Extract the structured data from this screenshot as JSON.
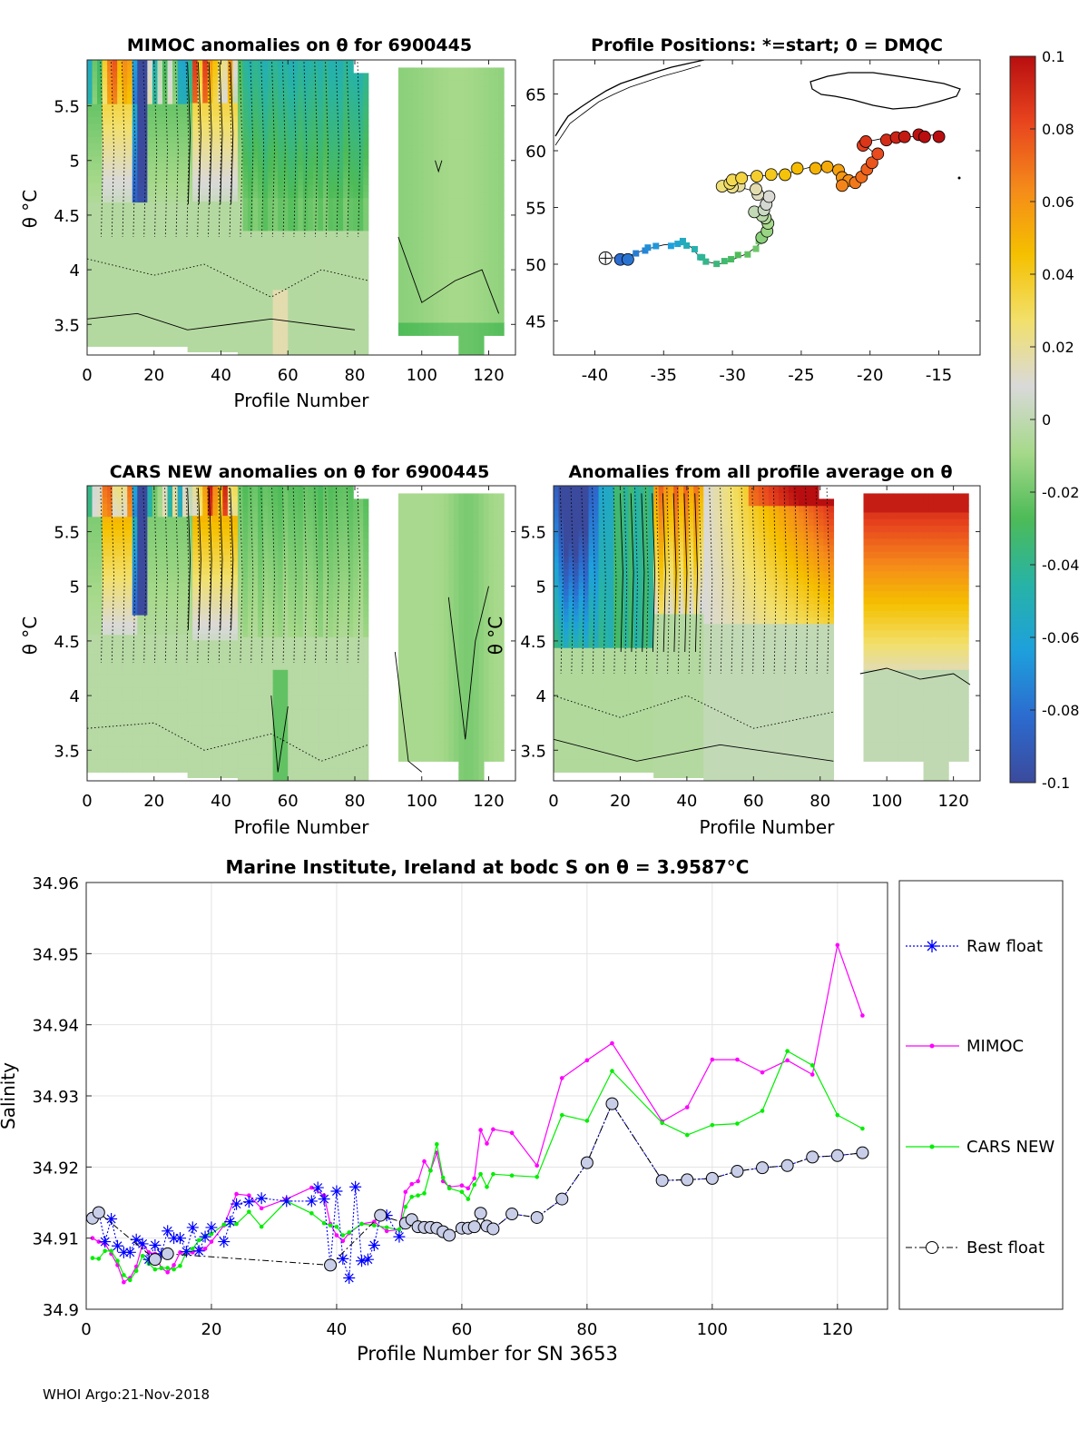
{
  "footer": "WHOI Argo:21-Nov-2018",
  "colorbar": {
    "ticks": [
      "0.1",
      "0.08",
      "0.06",
      "0.04",
      "0.02",
      "0",
      "-0.02",
      "-0.04",
      "-0.06",
      "-0.08",
      "-0.1"
    ],
    "range": [
      -0.1,
      0.1
    ],
    "stops": [
      "#3b4a9c",
      "#2c6bcf",
      "#1ea0dc",
      "#27b3a6",
      "#4dbb57",
      "#a6d98a",
      "#d9d9d9",
      "#f2e06b",
      "#f5c000",
      "#f58a1a",
      "#e8451e",
      "#b80e10"
    ]
  },
  "panels": {
    "mimoc": {
      "title": "MIMOC anomalies on θ  for 6900445",
      "ylabel": "θ °C",
      "xlabel": "Profile Number",
      "xticks": [
        "0",
        "20",
        "40",
        "60",
        "80",
        "100",
        "120"
      ],
      "yticks": [
        "5.5",
        "5",
        "4.5",
        "4",
        "3.5"
      ],
      "xlim": [
        0,
        128
      ],
      "ylim": [
        3.22,
        5.92
      ]
    },
    "positions": {
      "title": "Profile Positions: *=start; 0 = DMQC",
      "xticks": [
        "-40",
        "-35",
        "-30",
        "-25",
        "-20",
        "-15"
      ],
      "yticks": [
        "65",
        "60",
        "55",
        "50",
        "45"
      ],
      "xlim": [
        -43,
        -12
      ],
      "ylim": [
        42,
        68
      ]
    },
    "cars": {
      "title": "CARS NEW anomalies on θ for 6900445",
      "ylabel": "θ °C",
      "xlabel": "Profile Number",
      "xticks": [
        "0",
        "20",
        "40",
        "60",
        "80",
        "100",
        "120"
      ],
      "yticks": [
        "5.5",
        "5",
        "4.5",
        "4",
        "3.5"
      ],
      "xlim": [
        0,
        128
      ],
      "ylim": [
        3.22,
        5.92
      ]
    },
    "average": {
      "title": "Anomalies from all profile average on θ",
      "ylabel": "θ °C",
      "xlabel": "Profile Number",
      "xticks": [
        "0",
        "20",
        "40",
        "60",
        "80",
        "100",
        "120"
      ],
      "yticks": [
        "5.5",
        "5",
        "4.5",
        "4",
        "3.5"
      ],
      "xlim": [
        0,
        128
      ],
      "ylim": [
        3.22,
        5.92
      ]
    }
  },
  "legend": {
    "raw": "Raw float",
    "mimoc": "MIMOC",
    "cars": "CARS NEW",
    "best": "Best float"
  },
  "chart_data": {
    "type": "line",
    "title": "Marine Institute, Ireland at bodc S on θ = 3.9587°C",
    "xlabel": "Profile Number for SN 3653",
    "ylabel": "Salinity",
    "xlim": [
      0,
      128
    ],
    "ylim": [
      34.9,
      34.96
    ],
    "xticks": [
      "0",
      "20",
      "40",
      "60",
      "80",
      "100",
      "120"
    ],
    "yticks": [
      "34.96",
      "34.95",
      "34.94",
      "34.93",
      "34.92",
      "34.91",
      "34.9"
    ],
    "grid": true,
    "legend_position": "right-outside",
    "colors": {
      "raw": "#0000ff",
      "mimoc": "#ff00ff",
      "cars": "#00ee00",
      "best": "#000000",
      "best_fill": "#c8cde8"
    },
    "series": [
      {
        "name": "Raw float",
        "key": "raw",
        "x": [
          1,
          2,
          3,
          4,
          5,
          6,
          7,
          8,
          9,
          10,
          11,
          12,
          13,
          14,
          15,
          16,
          17,
          18,
          19,
          20,
          22,
          23,
          24,
          26,
          28,
          32,
          36,
          37,
          38,
          39,
          40,
          41,
          42,
          43,
          44,
          45,
          46,
          47,
          48,
          50,
          51,
          52,
          53,
          54,
          55,
          56,
          57,
          58,
          60,
          61,
          62,
          63,
          64,
          65,
          68,
          72,
          76,
          80,
          84,
          92,
          96,
          100,
          104,
          108,
          112,
          116,
          120,
          124
        ],
        "y": [
          34.9128,
          34.9136,
          34.9095,
          34.9127,
          34.9089,
          34.908,
          34.908,
          34.9098,
          34.9092,
          34.907,
          34.909,
          34.9078,
          34.911,
          34.91,
          34.91,
          34.9081,
          34.9115,
          34.9082,
          34.9102,
          34.9115,
          34.9095,
          34.9123,
          34.9148,
          34.9151,
          34.9156,
          34.9152,
          34.9152,
          34.9171,
          34.9155,
          34.9062,
          34.9166,
          34.9071,
          34.9044,
          34.9172,
          34.9068,
          34.907,
          34.909,
          34.9132,
          34.9132,
          34.9102,
          34.9121,
          34.9126,
          34.9116,
          34.9115,
          34.9115,
          34.9114,
          34.9109,
          34.9104,
          34.9114,
          34.9114,
          34.9116,
          34.9135,
          34.9117,
          34.9113,
          34.9134,
          34.9129,
          34.9155,
          34.9206,
          34.9289,
          34.9181,
          34.9182,
          34.9184,
          34.9194,
          34.9199,
          34.9202,
          34.9214,
          34.9216,
          34.922
        ]
      },
      {
        "name": "MIMOC",
        "key": "mimoc",
        "x": [
          1,
          2,
          3,
          4,
          5,
          6,
          7,
          8,
          9,
          10,
          11,
          12,
          13,
          14,
          15,
          16,
          17,
          18,
          19,
          20,
          22,
          24,
          26,
          28,
          32,
          36,
          38,
          39,
          40,
          41,
          42,
          44,
          46,
          48,
          50,
          51,
          52,
          53,
          54,
          55,
          56,
          57,
          58,
          60,
          61,
          62,
          63,
          64,
          65,
          68,
          72,
          76,
          80,
          84,
          92,
          96,
          100,
          104,
          108,
          112,
          116,
          120,
          124
        ],
        "y": [
          34.91,
          34.9095,
          34.9092,
          34.9078,
          34.9062,
          34.9038,
          34.9044,
          34.906,
          34.9092,
          34.908,
          34.9078,
          34.9058,
          34.9052,
          34.9062,
          34.908,
          34.9078,
          34.908,
          34.9083,
          34.9085,
          34.9095,
          34.9118,
          34.9162,
          34.916,
          34.9142,
          34.9155,
          34.9171,
          34.916,
          34.912,
          34.9104,
          34.9096,
          34.9107,
          34.912,
          34.9123,
          34.911,
          34.9112,
          34.9165,
          34.9176,
          34.918,
          34.9208,
          34.9195,
          34.922,
          34.918,
          34.9172,
          34.9174,
          34.917,
          34.9184,
          34.9252,
          34.9233,
          34.9253,
          34.9248,
          34.9202,
          34.9325,
          34.935,
          34.9374,
          34.9264,
          34.9284,
          34.9351,
          34.9351,
          34.9333,
          34.935,
          34.933,
          34.9512,
          34.9413
        ]
      },
      {
        "name": "CARS NEW",
        "key": "cars",
        "x": [
          1,
          2,
          3,
          4,
          5,
          6,
          7,
          8,
          9,
          10,
          11,
          12,
          13,
          14,
          15,
          16,
          17,
          18,
          19,
          20,
          22,
          24,
          26,
          28,
          32,
          36,
          38,
          39,
          40,
          41,
          42,
          44,
          46,
          48,
          50,
          51,
          52,
          53,
          54,
          55,
          56,
          57,
          58,
          60,
          61,
          62,
          63,
          64,
          65,
          68,
          72,
          76,
          80,
          84,
          92,
          96,
          100,
          104,
          108,
          112,
          116,
          120,
          124
        ],
        "y": [
          34.9072,
          34.9071,
          34.9082,
          34.9082,
          34.9068,
          34.9048,
          34.9041,
          34.9054,
          34.9075,
          34.9064,
          34.9056,
          34.9058,
          34.9058,
          34.9056,
          34.9061,
          34.908,
          34.9085,
          34.9097,
          34.9103,
          34.9106,
          34.9119,
          34.912,
          34.9137,
          34.9116,
          34.9152,
          34.9135,
          34.9121,
          34.9118,
          34.9116,
          34.9104,
          34.9108,
          34.912,
          34.9118,
          34.9115,
          34.9112,
          34.9144,
          34.9158,
          34.916,
          34.9163,
          34.9195,
          34.9232,
          34.9185,
          34.917,
          34.9165,
          34.9155,
          34.9175,
          34.919,
          34.9172,
          34.919,
          34.9188,
          34.9186,
          34.9273,
          34.9265,
          34.9335,
          34.9262,
          34.9245,
          34.9259,
          34.9261,
          34.9279,
          34.9363,
          34.9343,
          34.9273,
          34.9254
        ]
      },
      {
        "name": "Best float",
        "key": "best",
        "x": [
          1,
          2,
          11,
          13,
          39,
          47,
          51,
          52,
          53,
          54,
          55,
          56,
          57,
          58,
          60,
          61,
          62,
          63,
          64,
          65,
          68,
          72,
          76,
          80,
          84,
          92,
          96,
          100,
          104,
          108,
          112,
          116,
          120,
          124
        ],
        "y": [
          34.9128,
          34.9136,
          34.907,
          34.9078,
          34.9062,
          34.9132,
          34.9121,
          34.9126,
          34.9116,
          34.9115,
          34.9115,
          34.9114,
          34.9109,
          34.9104,
          34.9114,
          34.9114,
          34.9116,
          34.9135,
          34.9117,
          34.9113,
          34.9134,
          34.9129,
          34.9155,
          34.9206,
          34.9289,
          34.9181,
          34.9182,
          34.9184,
          34.9194,
          34.9199,
          34.9202,
          34.9214,
          34.9216,
          34.922
        ]
      }
    ]
  }
}
